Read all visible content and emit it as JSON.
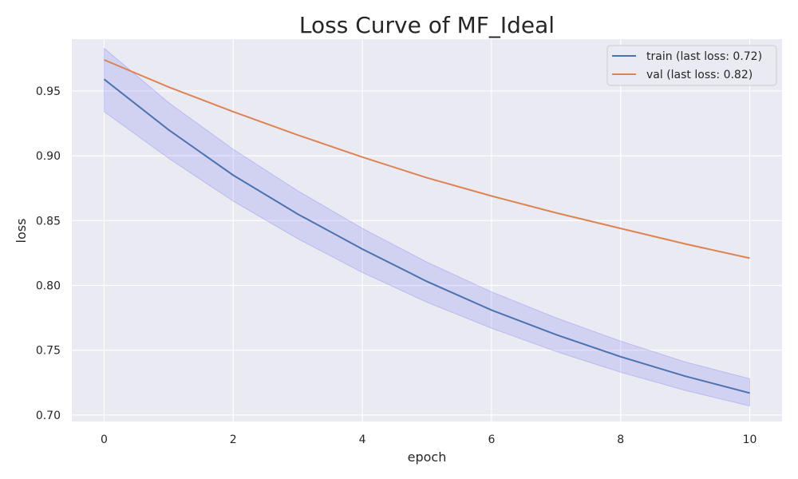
{
  "chart_data": {
    "type": "line",
    "title": "Loss Curve of MF_Ideal",
    "xlabel": "epoch",
    "ylabel": "loss",
    "x": [
      0,
      1,
      2,
      3,
      4,
      5,
      6,
      7,
      8,
      9,
      10
    ],
    "xlim": [
      -0.5,
      10.5
    ],
    "ylim": [
      0.695,
      0.99
    ],
    "xticks": [
      0,
      2,
      4,
      6,
      8,
      10
    ],
    "yticks": [
      0.7,
      0.75,
      0.8,
      0.85,
      0.9,
      0.95
    ],
    "xtick_labels": [
      "0",
      "2",
      "4",
      "6",
      "8",
      "10"
    ],
    "ytick_labels": [
      "0.70",
      "0.75",
      "0.80",
      "0.85",
      "0.90",
      "0.95"
    ],
    "grid": true,
    "legend_position": "top-right",
    "series": [
      {
        "name": "train (last loss: 0.72)",
        "color": "#4c72b0",
        "values": [
          0.959,
          0.92,
          0.885,
          0.855,
          0.828,
          0.803,
          0.781,
          0.762,
          0.745,
          0.73,
          0.717
        ],
        "band_upper": [
          0.983,
          0.941,
          0.905,
          0.873,
          0.844,
          0.818,
          0.795,
          0.775,
          0.757,
          0.741,
          0.728
        ],
        "band_lower": [
          0.934,
          0.898,
          0.865,
          0.836,
          0.81,
          0.787,
          0.767,
          0.749,
          0.733,
          0.719,
          0.707
        ]
      },
      {
        "name": "val (last loss: 0.82)",
        "color": "#dd8452",
        "values": [
          0.974,
          0.953,
          0.934,
          0.916,
          0.899,
          0.883,
          0.869,
          0.856,
          0.844,
          0.832,
          0.821
        ]
      }
    ],
    "band_color": "#7b7bf0"
  }
}
